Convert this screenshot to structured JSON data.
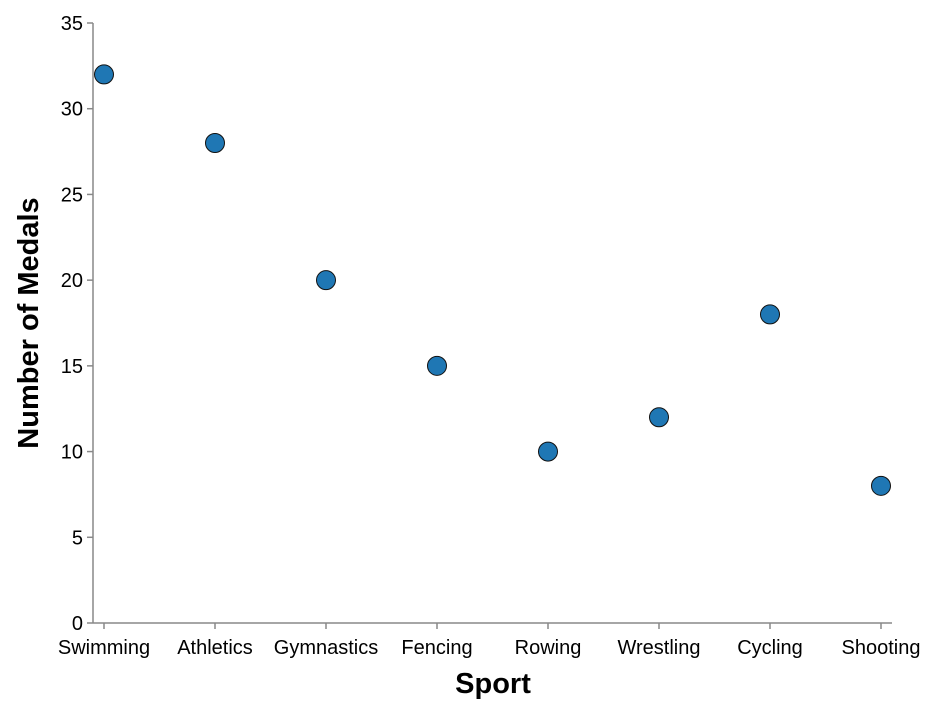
{
  "chart_data": {
    "type": "scatter",
    "categories": [
      "Swimming",
      "Athletics",
      "Gymnastics",
      "Fencing",
      "Rowing",
      "Wrestling",
      "Cycling",
      "Shooting"
    ],
    "values": [
      32,
      28,
      20,
      15,
      10,
      12,
      18,
      8
    ],
    "xlabel": "Sport",
    "ylabel": "Number of Medals",
    "ylim": [
      0,
      35
    ],
    "yticks": [
      0,
      5,
      10,
      15,
      20,
      25,
      30,
      35
    ],
    "grid": false,
    "colors": {
      "point": "#1f77b4",
      "axis": "#888888"
    }
  }
}
